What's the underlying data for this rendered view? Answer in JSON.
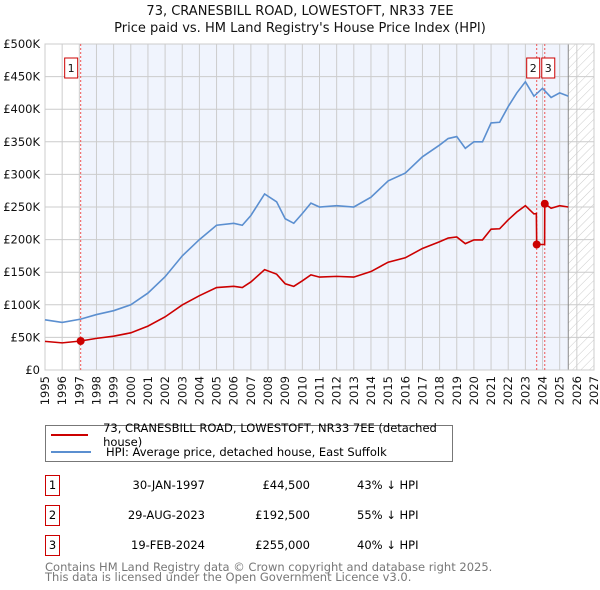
{
  "chart_data": {
    "type": "line",
    "title": "73, CRANESBILL ROAD, LOWESTOFT, NR33 7EE",
    "subtitle": "Price paid vs. HM Land Registry's House Price Index (HPI)",
    "xlim": [
      1995,
      2027
    ],
    "ylim": [
      0,
      500000
    ],
    "x_ticks": [
      "1995",
      "1996",
      "1997",
      "1998",
      "1999",
      "2000",
      "2001",
      "2002",
      "2003",
      "2004",
      "2005",
      "2006",
      "2007",
      "2008",
      "2009",
      "2010",
      "2011",
      "2012",
      "2013",
      "2014",
      "2015",
      "2016",
      "2017",
      "2018",
      "2019",
      "2020",
      "2021",
      "2022",
      "2023",
      "2024",
      "2025",
      "2026",
      "2027"
    ],
    "y_ticks": [
      "£0",
      "£50K",
      "£100K",
      "£150K",
      "£200K",
      "£250K",
      "£300K",
      "£350K",
      "£400K",
      "£450K",
      "£500K"
    ],
    "grid": true,
    "forecast_from": 2025.5,
    "series": [
      {
        "name": "73, CRANESBILL ROAD, LOWESTOFT, NR33 7EE (detached house)",
        "color": "#cc0000",
        "x": [
          1995,
          1996,
          1997.08,
          1998,
          1999,
          2000,
          2001,
          2002,
          2003,
          2004,
          2005,
          2006,
          2006.5,
          2007,
          2007.8,
          2008.5,
          2009,
          2009.5,
          2010,
          2010.5,
          2011,
          2012,
          2013,
          2014,
          2015,
          2016,
          2017,
          2018,
          2018.5,
          2019,
          2019.5,
          2020,
          2020.5,
          2021,
          2021.5,
          2022,
          2022.5,
          2023,
          2023.5,
          2023.64,
          2023.66,
          2024.12,
          2024.13,
          2024.5,
          2025,
          2025.5
        ],
        "y": [
          43900,
          41600,
          44500,
          48500,
          51900,
          57000,
          67300,
          81500,
          99800,
          114000,
          126500,
          128300,
          126500,
          135000,
          153900,
          147000,
          132200,
          128300,
          136800,
          145900,
          142500,
          143600,
          142500,
          151000,
          165300,
          172100,
          186400,
          196700,
          202400,
          204000,
          193800,
          199500,
          199500,
          216000,
          216600,
          230300,
          242300,
          252000,
          239400,
          240000,
          192500,
          192500,
          255000,
          248000,
          252000,
          250000
        ]
      },
      {
        "name": "HPI: Average price, detached house, East Suffolk",
        "color": "#5b8fd0",
        "x": [
          1995,
          1996,
          1997.08,
          1998,
          1999,
          2000,
          2001,
          2002,
          2003,
          2004,
          2005,
          2006,
          2006.5,
          2007,
          2007.8,
          2008.5,
          2009,
          2009.5,
          2010,
          2010.5,
          2011,
          2012,
          2013,
          2014,
          2015,
          2016,
          2017,
          2018,
          2018.5,
          2019,
          2019.5,
          2020,
          2020.5,
          2021,
          2021.5,
          2022,
          2022.5,
          2023,
          2023.5,
          2024,
          2024.5,
          2025,
          2025.5
        ],
        "y": [
          77000,
          73000,
          78000,
          85000,
          91000,
          100000,
          118000,
          143000,
          175000,
          200000,
          222000,
          225000,
          222000,
          237000,
          270000,
          258000,
          232000,
          225000,
          240000,
          256000,
          250000,
          252000,
          250000,
          265000,
          290000,
          302000,
          327000,
          345000,
          355000,
          358000,
          340000,
          350000,
          350000,
          379000,
          380000,
          404000,
          425000,
          442000,
          420000,
          432000,
          418000,
          425000,
          420000
        ]
      }
    ],
    "sales": [
      {
        "label": "1",
        "x": 1997.08,
        "y": 44500,
        "date": "30-JAN-1997",
        "price": "£44,500",
        "hpi": "43% ↓ HPI"
      },
      {
        "label": "2",
        "x": 2023.66,
        "y": 192500,
        "date": "29-AUG-2023",
        "price": "£192,500",
        "hpi": "55% ↓ HPI"
      },
      {
        "label": "3",
        "x": 2024.13,
        "y": 255000,
        "date": "19-FEB-2024",
        "price": "£255,000",
        "hpi": "40% ↓ HPI"
      }
    ],
    "legend": [
      "73, CRANESBILL ROAD, LOWESTOFT, NR33 7EE (detached house)",
      "HPI: Average price, detached house, East Suffolk"
    ],
    "footer": [
      "Contains HM Land Registry data © Crown copyright and database right 2025.",
      "This data is licensed under the Open Government Licence v3.0."
    ]
  }
}
